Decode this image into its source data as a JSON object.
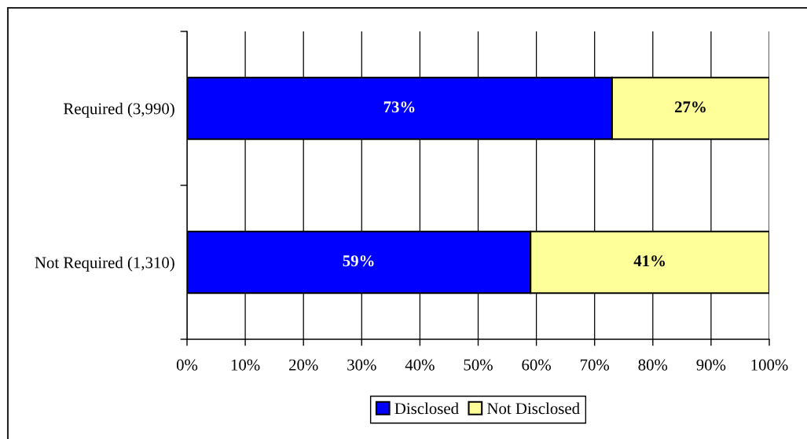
{
  "chart_data": {
    "type": "bar",
    "orientation": "horizontal",
    "stacked": true,
    "categories": [
      "Required (3,990)",
      "Not Required (1,310)"
    ],
    "series": [
      {
        "name": "Disclosed",
        "color": "#0000ff",
        "values": [
          73,
          59
        ],
        "value_labels": [
          "73%",
          "59%"
        ]
      },
      {
        "name": "Not Disclosed",
        "color": "#ffff99",
        "values": [
          27,
          41
        ],
        "value_labels": [
          "27%",
          "41%"
        ]
      }
    ],
    "xlim": [
      0,
      100
    ],
    "xticks": [
      {
        "value": 0,
        "label": "0%"
      },
      {
        "value": 10,
        "label": "10%"
      },
      {
        "value": 20,
        "label": "20%"
      },
      {
        "value": 30,
        "label": "30%"
      },
      {
        "value": 40,
        "label": "40%"
      },
      {
        "value": 50,
        "label": "50%"
      },
      {
        "value": 60,
        "label": "60%"
      },
      {
        "value": 70,
        "label": "70%"
      },
      {
        "value": 80,
        "label": "80%"
      },
      {
        "value": 90,
        "label": "90%"
      },
      {
        "value": 100,
        "label": "100%"
      }
    ],
    "grid": "x",
    "legend": "bottom"
  }
}
